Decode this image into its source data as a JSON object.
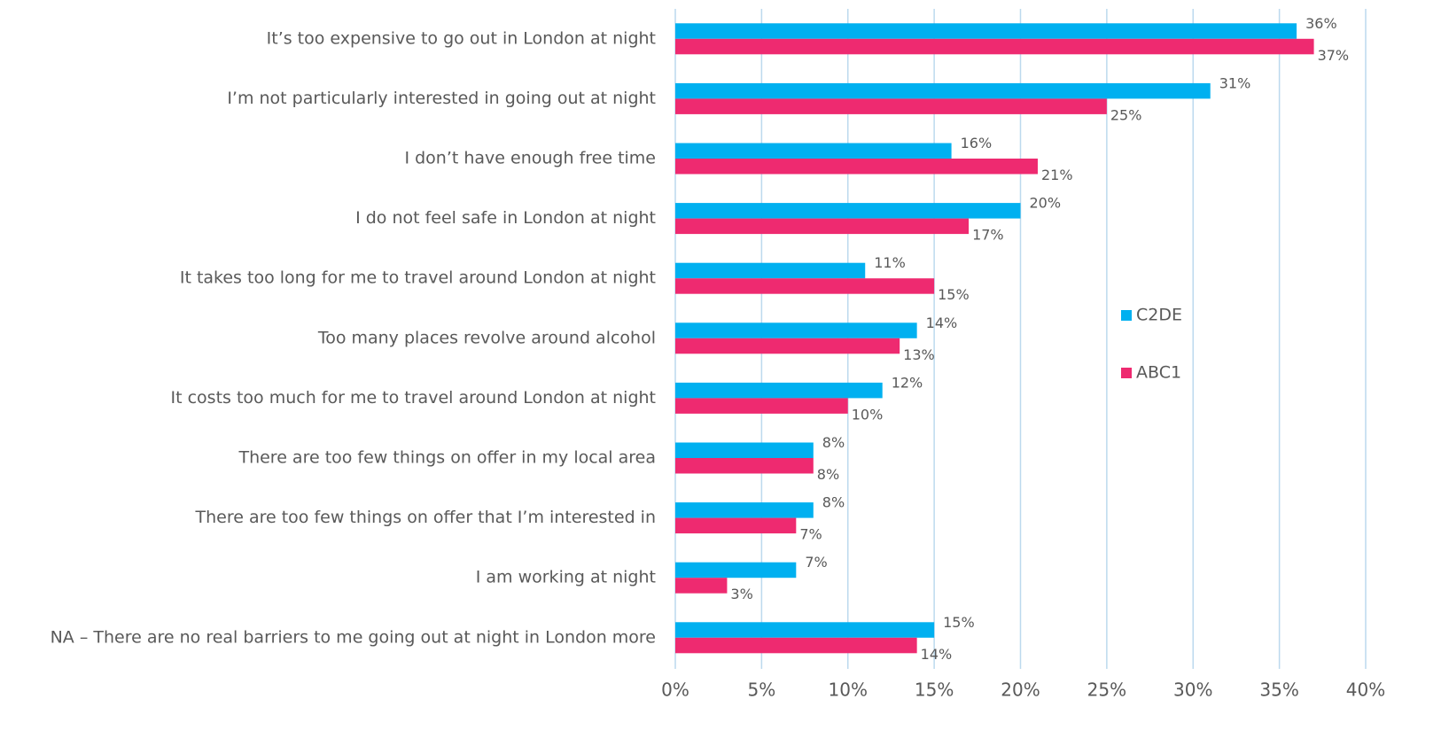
{
  "chart_data": {
    "type": "barh",
    "categories": [
      "It’s too expensive to go out in London at night",
      "I’m not particularly interested in going out at night",
      "I don’t have enough free time",
      "I do not feel safe in London at night",
      "It takes too long for me to travel around London at night",
      "Too many places revolve around alcohol",
      "It costs too much for me to travel around London at night",
      "There are too few things on offer in my local area",
      "There are too few things on offer that I’m interested in",
      "I am working at night",
      "NA – There are no real barriers to me going out at night in London more"
    ],
    "series": [
      {
        "name": "C2DE",
        "color": "#00b0f0",
        "values": [
          36,
          31,
          16,
          20,
          11,
          14,
          12,
          8,
          8,
          7,
          15
        ],
        "value_labels": [
          "36%",
          "31%",
          "16%",
          "20%",
          "11%",
          "14%",
          "12%",
          "8%",
          "8%",
          "7%",
          "15%"
        ]
      },
      {
        "name": "ABC1",
        "color": "#ee2a70",
        "values": [
          37,
          25,
          21,
          17,
          15,
          13,
          10,
          8,
          7,
          3,
          14
        ],
        "value_labels": [
          "37%",
          "25%",
          "21%",
          "17%",
          "15%",
          "13%",
          "10%",
          "8%",
          "7%",
          "3%",
          "14%"
        ]
      }
    ],
    "xlim": [
      0,
      40
    ],
    "xticks": [
      {
        "value": 0,
        "label": "0%"
      },
      {
        "value": 5,
        "label": "5%"
      },
      {
        "value": 10,
        "label": "10%"
      },
      {
        "value": 15,
        "label": "15%"
      },
      {
        "value": 20,
        "label": "20%"
      },
      {
        "value": 25,
        "label": "25%"
      },
      {
        "value": 30,
        "label": "30%"
      },
      {
        "value": 35,
        "label": "35%"
      },
      {
        "value": 40,
        "label": "40%"
      }
    ],
    "grid": true,
    "legend": "right"
  }
}
